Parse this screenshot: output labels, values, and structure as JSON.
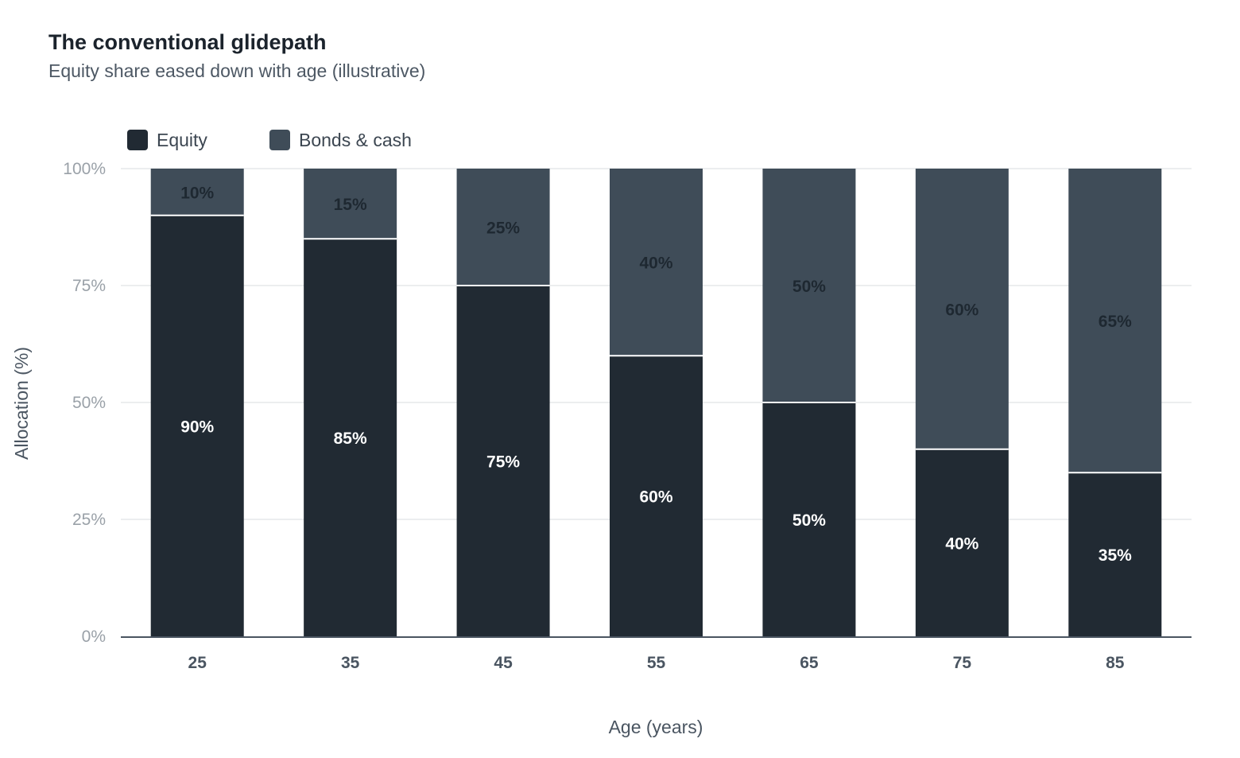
{
  "chart_data": {
    "type": "bar",
    "stacked": true,
    "title": "The conventional glidepath",
    "subtitle": "Equity share eased down with age (illustrative)",
    "xlabel": "Age (years)",
    "ylabel": "Allocation (%)",
    "categories": [
      "25",
      "35",
      "45",
      "55",
      "65",
      "75",
      "85"
    ],
    "series": [
      {
        "name": "Equity",
        "color": "#212a33",
        "label_color": "#ffffff",
        "values": [
          90,
          85,
          75,
          60,
          50,
          40,
          35
        ]
      },
      {
        "name": "Bonds & cash",
        "color": "#3f4c58",
        "label_color": "#1e2831",
        "values": [
          10,
          15,
          25,
          40,
          50,
          60,
          65
        ]
      }
    ],
    "ylim": [
      0,
      100
    ],
    "yticks": [
      0,
      25,
      50,
      75,
      100
    ],
    "ytick_labels": [
      "0%",
      "25%",
      "50%",
      "75%",
      "100%"
    ],
    "value_suffix": "%",
    "grid": true,
    "legend_position": "top-left"
  }
}
